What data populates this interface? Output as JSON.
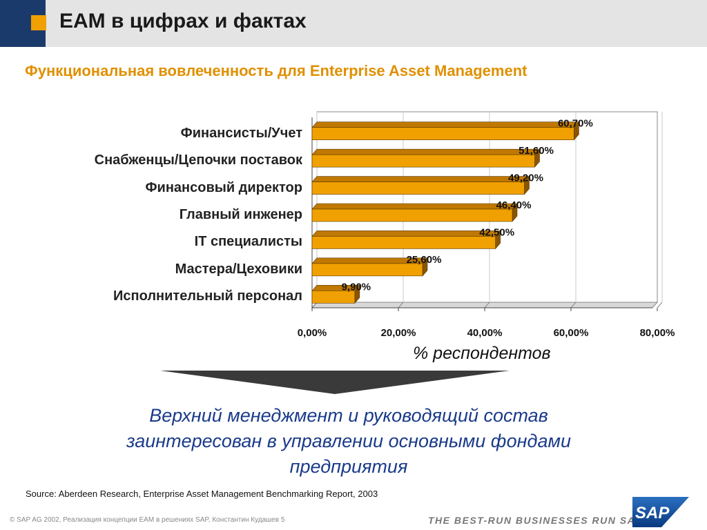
{
  "header": {
    "title": "EAM в цифрах и фактах"
  },
  "subtitle": "Функциональная вовлеченность для Enterprise Asset Management",
  "chart_data": {
    "type": "bar",
    "orientation": "horizontal",
    "categories": [
      "Финансисты/Учет",
      "Снабженцы/Цепочки поставок",
      "Финансовый директор",
      "Главный инженер",
      "IT специалисты",
      "Мастера/Цеховики",
      "Исполнительный персонал"
    ],
    "values": [
      60.7,
      51.6,
      49.2,
      46.4,
      42.5,
      25.6,
      9.9
    ],
    "value_labels": [
      "60,70%",
      "51,60%",
      "49,20%",
      "46,40%",
      "42,50%",
      "25,60%",
      "9,90%"
    ],
    "xlim": [
      0,
      80
    ],
    "xticks": [
      0,
      20,
      40,
      60,
      80
    ],
    "xtick_labels": [
      "0,00%",
      "20,00%",
      "40,00%",
      "60,00%",
      "80,00%"
    ],
    "xlabel": "% респондентов",
    "grid": true,
    "style": "3d",
    "colors": {
      "bar_front": "#f0a000",
      "bar_top": "#c07800",
      "bar_side": "#8a5500",
      "grid": "#c8c8c8"
    }
  },
  "conclusion": {
    "line1": "Верхний менеджмент и руководящий состав",
    "line2": "заинтересован в управлении основными фондами",
    "line3": "предприятия"
  },
  "source": "Source:  Aberdeen Research,  Enterprise Asset Management Benchmarking Report, 2003",
  "footer": {
    "copyright": "©  SAP AG 2002, Реализация концепции EAM в решениях SAP, Константин Кудашев  5",
    "tagline": "THE BEST-RUN BUSINESSES RUN SAP",
    "logo_text": "SAP"
  },
  "icons": {
    "header_square": "square-bullet-icon",
    "logo": "sap-logo-icon",
    "arrow": "down-arrow-icon"
  },
  "theme": {
    "navy": "#1a3a6b",
    "orange": "#f0a000",
    "conclusion_blue": "#1a3a8a"
  }
}
